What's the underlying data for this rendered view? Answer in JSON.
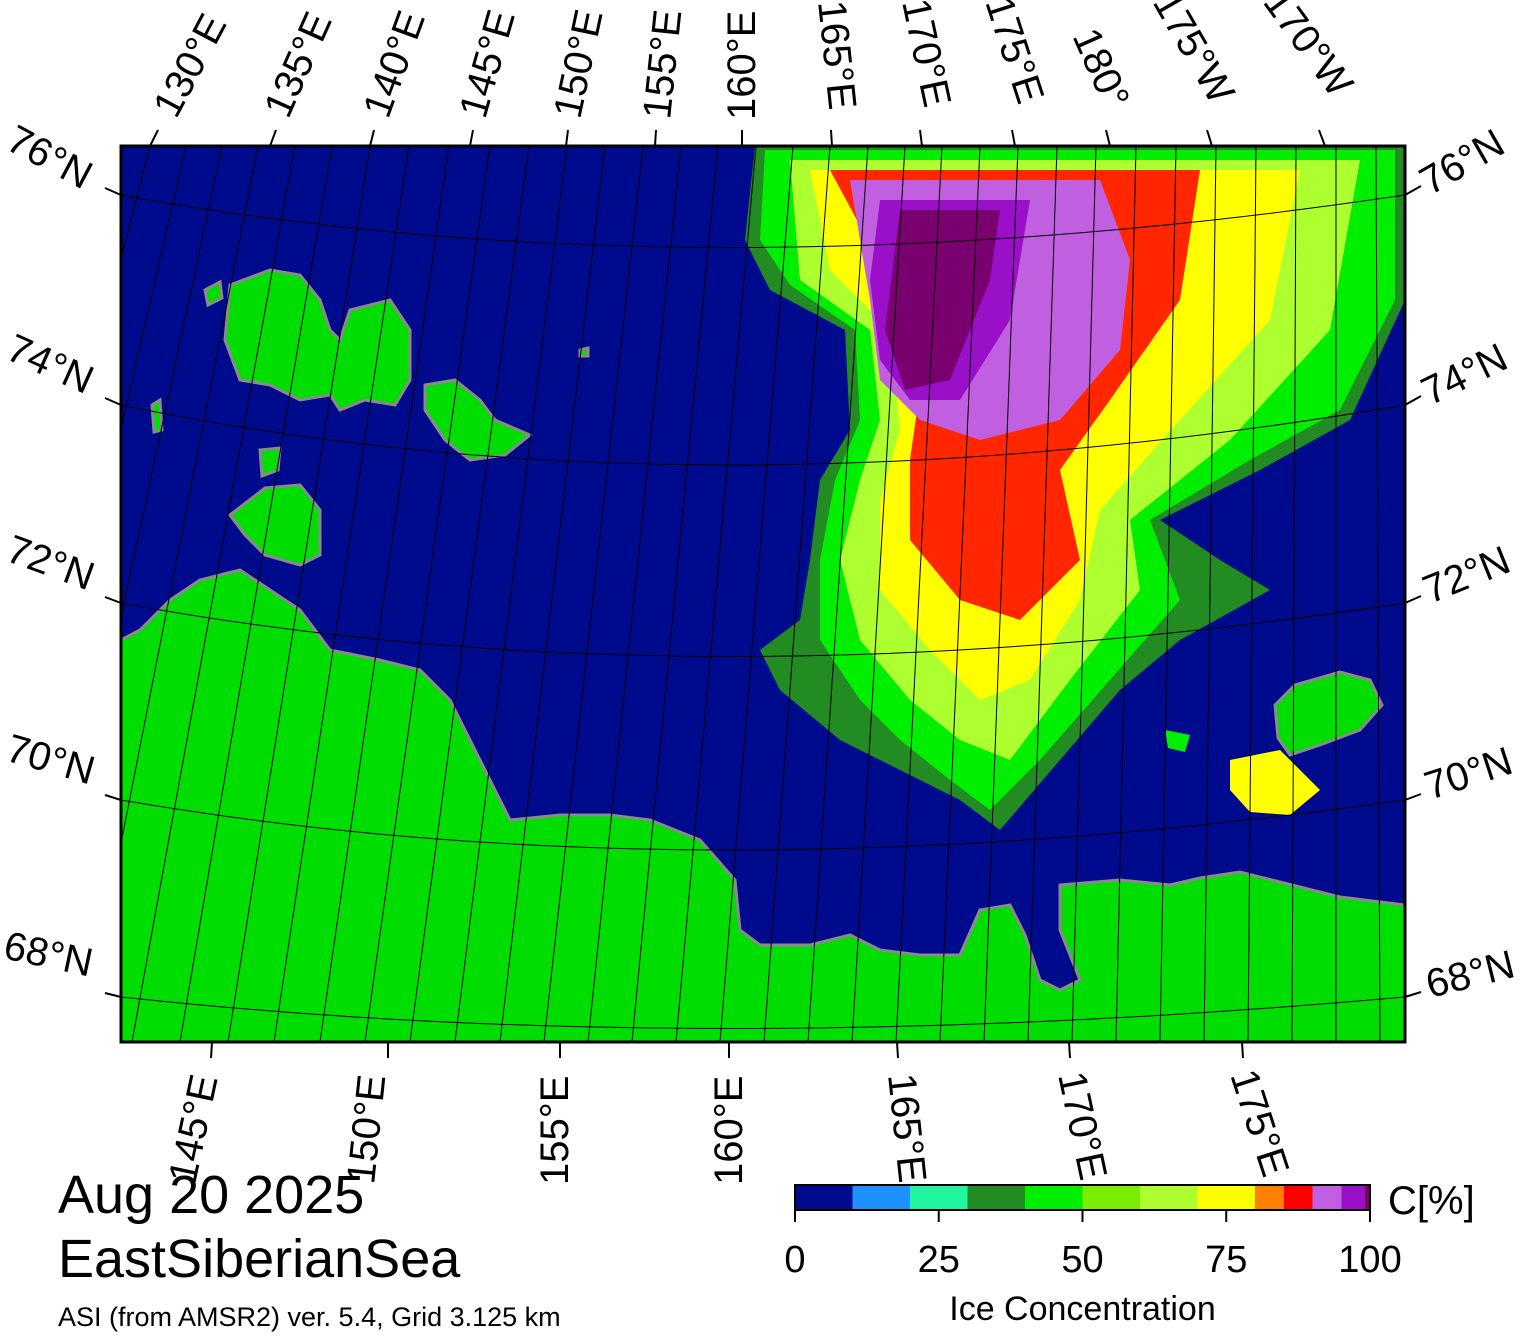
{
  "map": {
    "date": "Aug 20 2025",
    "region": "EastSiberianSea",
    "source": "ASI (from AMSR2) ver. 5.4,  Grid 3.125 km",
    "colors": {
      "ocean": "#000a8c",
      "land": "#00dd00",
      "coast": "#8a8a8a",
      "graticule": "#000000"
    },
    "top_lon_labels": [
      "130°E",
      "135°E",
      "140°E",
      "145°E",
      "150°E",
      "155°E",
      "160°E",
      "165°E",
      "170°E",
      "175°E",
      "180°",
      "175°W",
      "170°W"
    ],
    "bottom_lon_labels": [
      "145°E",
      "150°E",
      "155°E",
      "160°E",
      "165°E",
      "170°E",
      "175°E"
    ],
    "left_lat_labels": [
      "76°N",
      "74°N",
      "72°N",
      "70°N",
      "68°N"
    ],
    "right_lat_labels": [
      "76°N",
      "74°N",
      "72°N",
      "70°N",
      "68°N"
    ]
  },
  "colorbar": {
    "title": "Ice Concentration",
    "unit": "C[%]",
    "ticks": [
      "0",
      "25",
      "50",
      "75",
      "100"
    ],
    "colors": [
      "#000a8c",
      "#1e90ff",
      "#22f5a0",
      "#228b22",
      "#00ee00",
      "#7cec00",
      "#adff2f",
      "#ffff00",
      "#ff8000",
      "#ff0000",
      "#c060e0",
      "#9a10c8",
      "#7a0070"
    ]
  }
}
